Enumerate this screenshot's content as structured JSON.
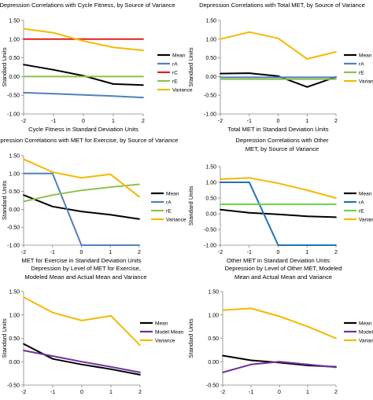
{
  "chart_data": [
    {
      "type": "line",
      "title": "Depression Correlations  with Cycle Fitness, by Source of Variance",
      "xlabel": "Cycle Fitness in Standard Deviation Units",
      "ylabel": "Standard Units",
      "x": [
        -2,
        -1,
        0,
        1,
        2
      ],
      "xlim": [
        -2,
        2
      ],
      "ylim": [
        -1.0,
        1.5
      ],
      "yticks": [
        "1.50",
        "1.00",
        "0.50",
        "0.00",
        "-0.50",
        "-1.00"
      ],
      "xticks": [
        "-2",
        "-1",
        "0",
        "1",
        "2"
      ],
      "legend": "right",
      "series": [
        {
          "name": "Mean",
          "color": "#000000",
          "values": [
            0.32,
            0.18,
            0.02,
            -0.2,
            -0.23
          ]
        },
        {
          "name": "rA",
          "color": "#4F81BD",
          "values": [
            -0.43,
            -0.46,
            -0.49,
            -0.52,
            -0.56
          ]
        },
        {
          "name": "rC",
          "color": "#E0201B",
          "values": [
            1.0,
            1.0,
            1.0,
            1.0,
            1.0
          ]
        },
        {
          "name": "rE",
          "color": "#8FC04F",
          "values": [
            0.0,
            0.0,
            0.0,
            0.0,
            0.0
          ]
        },
        {
          "name": "Variance",
          "color": "#F5B800",
          "values": [
            1.28,
            1.17,
            0.95,
            0.78,
            0.7
          ]
        }
      ]
    },
    {
      "type": "line",
      "title": "Depression Correlations  with Total MET, by Source of Variance",
      "xlabel": "Total MET in Standard Deviation Units",
      "ylabel": "Standard Units",
      "x": [
        -2,
        -1,
        0,
        1,
        2
      ],
      "xlim": [
        -2,
        2
      ],
      "ylim": [
        -1.0,
        1.5
      ],
      "yticks": [
        "1.50",
        "1.00",
        "0.50",
        "0.00",
        "-0.50",
        "-1.00"
      ],
      "xticks": [
        "-2",
        "-1",
        "0",
        "1",
        "2"
      ],
      "legend": "right",
      "series": [
        {
          "name": "Mean",
          "color": "#000000",
          "values": [
            0.08,
            0.09,
            0.01,
            -0.28,
            -0.01
          ]
        },
        {
          "name": "rA",
          "color": "#4F81BD",
          "values": [
            -0.02,
            -0.02,
            -0.02,
            -0.02,
            -0.02
          ]
        },
        {
          "name": "rE",
          "color": "#8FC04F",
          "values": [
            -0.07,
            -0.07,
            -0.07,
            -0.07,
            -0.07
          ]
        },
        {
          "name": "Variance",
          "color": "#F5B800",
          "values": [
            1.0,
            1.19,
            1.02,
            0.47,
            0.66
          ]
        }
      ]
    },
    {
      "type": "line",
      "title": "Depression Correlations  with MET for Exercise, by Source of Variance",
      "xlabel": "MET for Exercise in Standard Deviation Units",
      "ylabel": "Standard Units",
      "x": [
        -2,
        -1,
        0,
        1,
        2
      ],
      "xlim": [
        -2,
        2
      ],
      "ylim": [
        -1.0,
        1.5
      ],
      "yticks": [
        "1.50",
        "1.00",
        "0.50",
        "0.00",
        "-0.50",
        "-1.00"
      ],
      "xticks": [
        "-2",
        "-1",
        "0",
        "1",
        "2"
      ],
      "legend": "right",
      "series": [
        {
          "name": "Mean",
          "color": "#000000",
          "values": [
            0.4,
            0.08,
            -0.06,
            -0.15,
            -0.27
          ]
        },
        {
          "name": "rA",
          "color": "#4F81BD",
          "values": [
            1.0,
            1.0,
            -1.0,
            -1.0,
            -1.0
          ]
        },
        {
          "name": "rE",
          "color": "#8FC04F",
          "values": [
            0.22,
            0.4,
            0.53,
            0.62,
            0.7
          ]
        },
        {
          "name": "Variance",
          "color": "#F5B800",
          "values": [
            1.4,
            1.04,
            0.88,
            0.98,
            0.35
          ]
        }
      ]
    },
    {
      "type": "line",
      "title": "Depression Correlations  with Other MET, by Source of Variance",
      "xlabel": "Other MET in Standard Deviation Units",
      "ylabel": "Standard Units",
      "x": [
        -2,
        -1,
        0,
        1,
        2
      ],
      "xlim": [
        -2,
        2
      ],
      "ylim": [
        -1.0,
        1.5
      ],
      "yticks": [
        "1.50",
        "1.00",
        "0.50",
        "0.00",
        "-0.50",
        "-1.00"
      ],
      "xticks": [
        "-2",
        "-1",
        "0",
        "1",
        "2"
      ],
      "legend": "right",
      "series": [
        {
          "name": "Mean",
          "color": "#000000",
          "values": [
            0.13,
            0.03,
            -0.02,
            -0.08,
            -0.11
          ]
        },
        {
          "name": "rA",
          "color": "#1F73B8",
          "values": [
            1.0,
            1.0,
            -1.0,
            -1.0,
            -1.0
          ]
        },
        {
          "name": "rE",
          "color": "#6CD44A",
          "values": [
            0.3,
            0.3,
            0.3,
            0.3,
            0.3
          ]
        },
        {
          "name": "Variance",
          "color": "#F5B800",
          "values": [
            1.1,
            1.14,
            0.97,
            0.75,
            0.5
          ]
        }
      ]
    },
    {
      "type": "line",
      "title": "Depression by Level of MET for Exercise, Modeled Mean and Actual Mean and Variance",
      "xlabel": "MET for Exercise in Standard Deviation  Units",
      "ylabel": "Standard Units",
      "x": [
        -2,
        -1,
        0,
        1,
        2
      ],
      "xlim": [
        -2,
        2
      ],
      "ylim": [
        -0.5,
        1.5
      ],
      "yticks": [
        "1.50",
        "1.00",
        "0.50",
        "0.00",
        "-0.50"
      ],
      "xticks": [
        "-2",
        "-1",
        "0",
        "1",
        "2"
      ],
      "legend": "right",
      "series": [
        {
          "name": "Mean",
          "color": "#000000",
          "values": [
            0.38,
            0.06,
            -0.06,
            -0.16,
            -0.28
          ]
        },
        {
          "name": "Model Mean",
          "color": "#7030A0",
          "values": [
            0.24,
            0.12,
            0.0,
            -0.11,
            -0.23
          ]
        },
        {
          "name": "Variance",
          "color": "#F5B800",
          "values": [
            1.38,
            1.05,
            0.88,
            0.98,
            0.35
          ]
        }
      ]
    },
    {
      "type": "line",
      "title": "Depression by Level of Other MET, Modeled Mean and  Actual Mean and Variance",
      "xlabel": "Other MET in Standard Deviation Units",
      "ylabel": "Standard Units",
      "x": [
        -2,
        -1,
        0,
        1,
        2
      ],
      "xlim": [
        -2,
        2
      ],
      "ylim": [
        -0.5,
        1.5
      ],
      "yticks": [
        "1.50",
        "1.00",
        "0.50",
        "0.00",
        "-0.50"
      ],
      "xticks": [
        "-2",
        "-1",
        "0",
        "1",
        "2"
      ],
      "legend": "right",
      "series": [
        {
          "name": "Mean",
          "color": "#000000",
          "values": [
            0.13,
            0.03,
            -0.02,
            -0.08,
            -0.11
          ]
        },
        {
          "name": "Model Mean",
          "color": "#7030A0",
          "values": [
            -0.23,
            -0.06,
            0.0,
            -0.06,
            -0.12
          ]
        },
        {
          "name": "Variance",
          "color": "#F5B800",
          "values": [
            1.1,
            1.14,
            0.97,
            0.75,
            0.5
          ]
        }
      ]
    }
  ]
}
